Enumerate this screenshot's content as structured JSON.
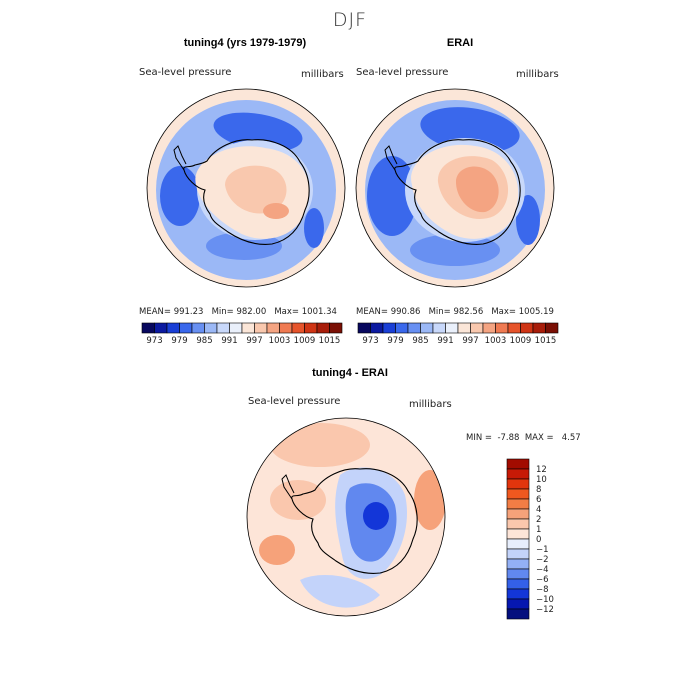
{
  "figure": {
    "title": "DJF",
    "panels": [
      {
        "title": "tuning4 (yrs 1979-1979)",
        "variable": "Sea-level pressure",
        "units": "millibars",
        "stats": {
          "mean_label": "MEAN=",
          "mean": "991.23",
          "min_label": "Min=",
          "min": "982.00",
          "max_label": "Max=",
          "max": "1001.34"
        }
      },
      {
        "title": "ERAI",
        "variable": "Sea-level pressure",
        "units": "millibars",
        "stats": {
          "mean_label": "MEAN=",
          "mean": "990.86",
          "min_label": "Min=",
          "min": "982.56",
          "max_label": "Max=",
          "max": "1005.19"
        }
      },
      {
        "title": "tuning4 - ERAI",
        "variable": "Sea-level pressure",
        "units": "millibars",
        "stats": {
          "min_label": "MIN =",
          "min": "-7.88",
          "max_label": "MAX =",
          "max": "4.57"
        }
      }
    ],
    "colorbar_top": {
      "labels": [
        "973",
        "979",
        "985",
        "991",
        "997",
        "1003",
        "1009",
        "1015"
      ],
      "colors": [
        "#08085e",
        "#0c1aa0",
        "#1a3fd6",
        "#3a68ec",
        "#6890f2",
        "#9bb8f6",
        "#c8d8fa",
        "#eaf0fb",
        "#fbe6d8",
        "#f9c8ae",
        "#f4a482",
        "#ef7a52",
        "#e6542b",
        "#cf3414",
        "#a81d0a",
        "#7a0f04"
      ]
    },
    "colorbar_diff": {
      "labels": [
        "12",
        "10",
        "8",
        "6",
        "4",
        "2",
        "1",
        "0",
        "−1",
        "−2",
        "−4",
        "−6",
        "−8",
        "−10",
        "−12"
      ],
      "colors": [
        "#a20c00",
        "#c71a06",
        "#e2350d",
        "#f0581f",
        "#f27d45",
        "#f6a27a",
        "#fac7ad",
        "#fde5d8",
        "#e7eefc",
        "#c3d3fa",
        "#93b0f5",
        "#6188ef",
        "#3460e8",
        "#1336d8",
        "#0617b0",
        "#040f7e"
      ]
    },
    "map_colors": {
      "low_deep": "#3a68ec",
      "low_mid": "#6890f2",
      "low_light": "#9bb8f6",
      "neutral_blue": "#c8d8fa",
      "neutral": "#eaf0fb",
      "warm_light": "#fbe6d8",
      "warm_mid": "#f9c8ae",
      "warm_deep": "#f4a482",
      "diff_pos": "#f6a27a",
      "diff_neg": "#3460e8"
    }
  }
}
